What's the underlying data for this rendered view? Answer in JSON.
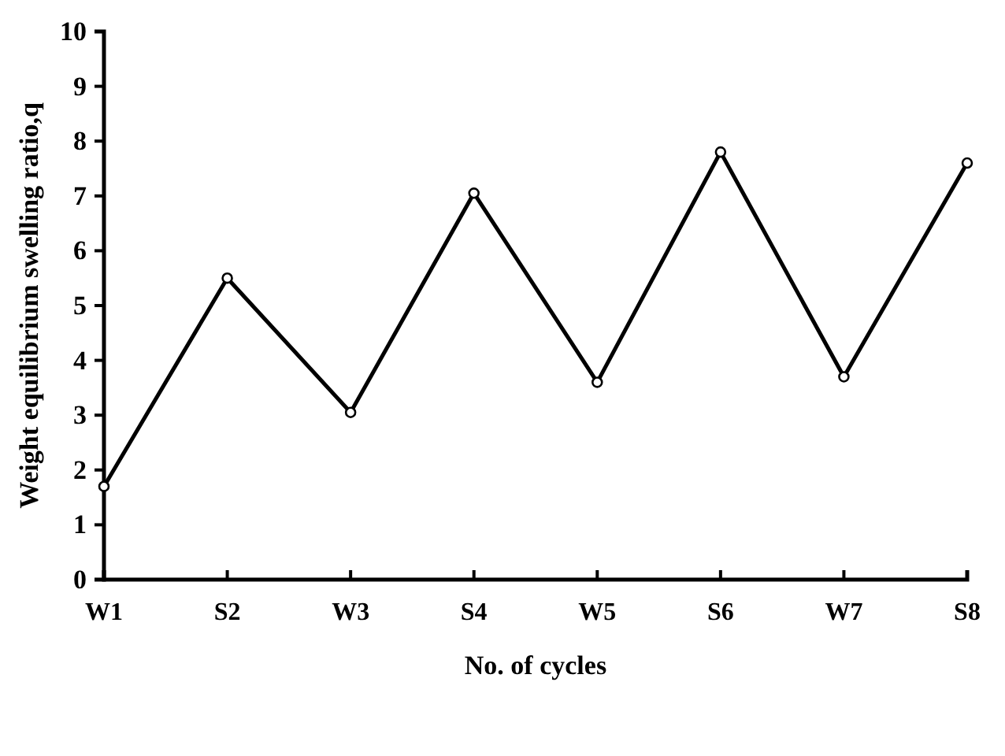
{
  "chart_data": {
    "type": "line",
    "xlabel": "No. of cycles",
    "ylabel": "Weight equilibrium swelling ratio,q",
    "categories": [
      "W1",
      "S2",
      "W3",
      "S4",
      "W5",
      "S6",
      "W7",
      "S8"
    ],
    "series": [
      {
        "color": "#000000",
        "values": [
          1.7,
          5.5,
          3.05,
          7.05,
          3.6,
          7.8,
          3.7,
          7.6
        ]
      }
    ],
    "ylim": [
      0,
      10
    ],
    "yticks": [
      0,
      1,
      2,
      3,
      4,
      5,
      6,
      7,
      8,
      9,
      10
    ],
    "marker": "circle",
    "line_style": "solid",
    "grid": false
  }
}
